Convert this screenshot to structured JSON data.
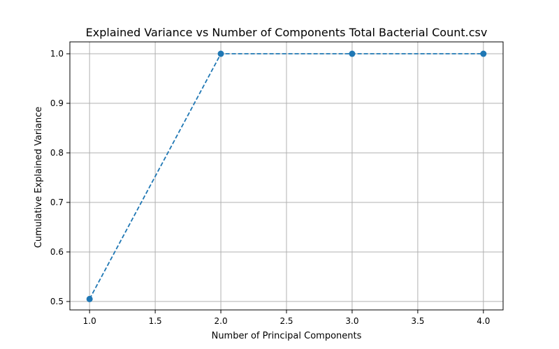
{
  "chart_data": {
    "type": "line",
    "title": "Explained Variance vs Number of Components Total Bacterial Count.csv",
    "xlabel": "Number of Principal Components",
    "ylabel": "Cumulative Explained Variance",
    "x": [
      1,
      2,
      3,
      4
    ],
    "series": [
      {
        "values": [
          0.505,
          1.0,
          1.0,
          1.0
        ]
      }
    ],
    "xlim": [
      0.85,
      4.15
    ],
    "ylim": [
      0.483,
      1.024
    ],
    "xticks": [
      1.0,
      1.5,
      2.0,
      2.5,
      3.0,
      3.5,
      4.0
    ],
    "xtick_labels": [
      "1.0",
      "1.5",
      "2.0",
      "2.5",
      "3.0",
      "3.5",
      "4.0"
    ],
    "yticks": [
      0.5,
      0.6,
      0.7,
      0.8,
      0.9,
      1.0
    ],
    "ytick_labels": [
      "0.5",
      "0.6",
      "0.7",
      "0.8",
      "0.9",
      "1.0"
    ],
    "grid": true,
    "line_style": "dashed",
    "marker": "circle",
    "color": "#1f77b4"
  }
}
